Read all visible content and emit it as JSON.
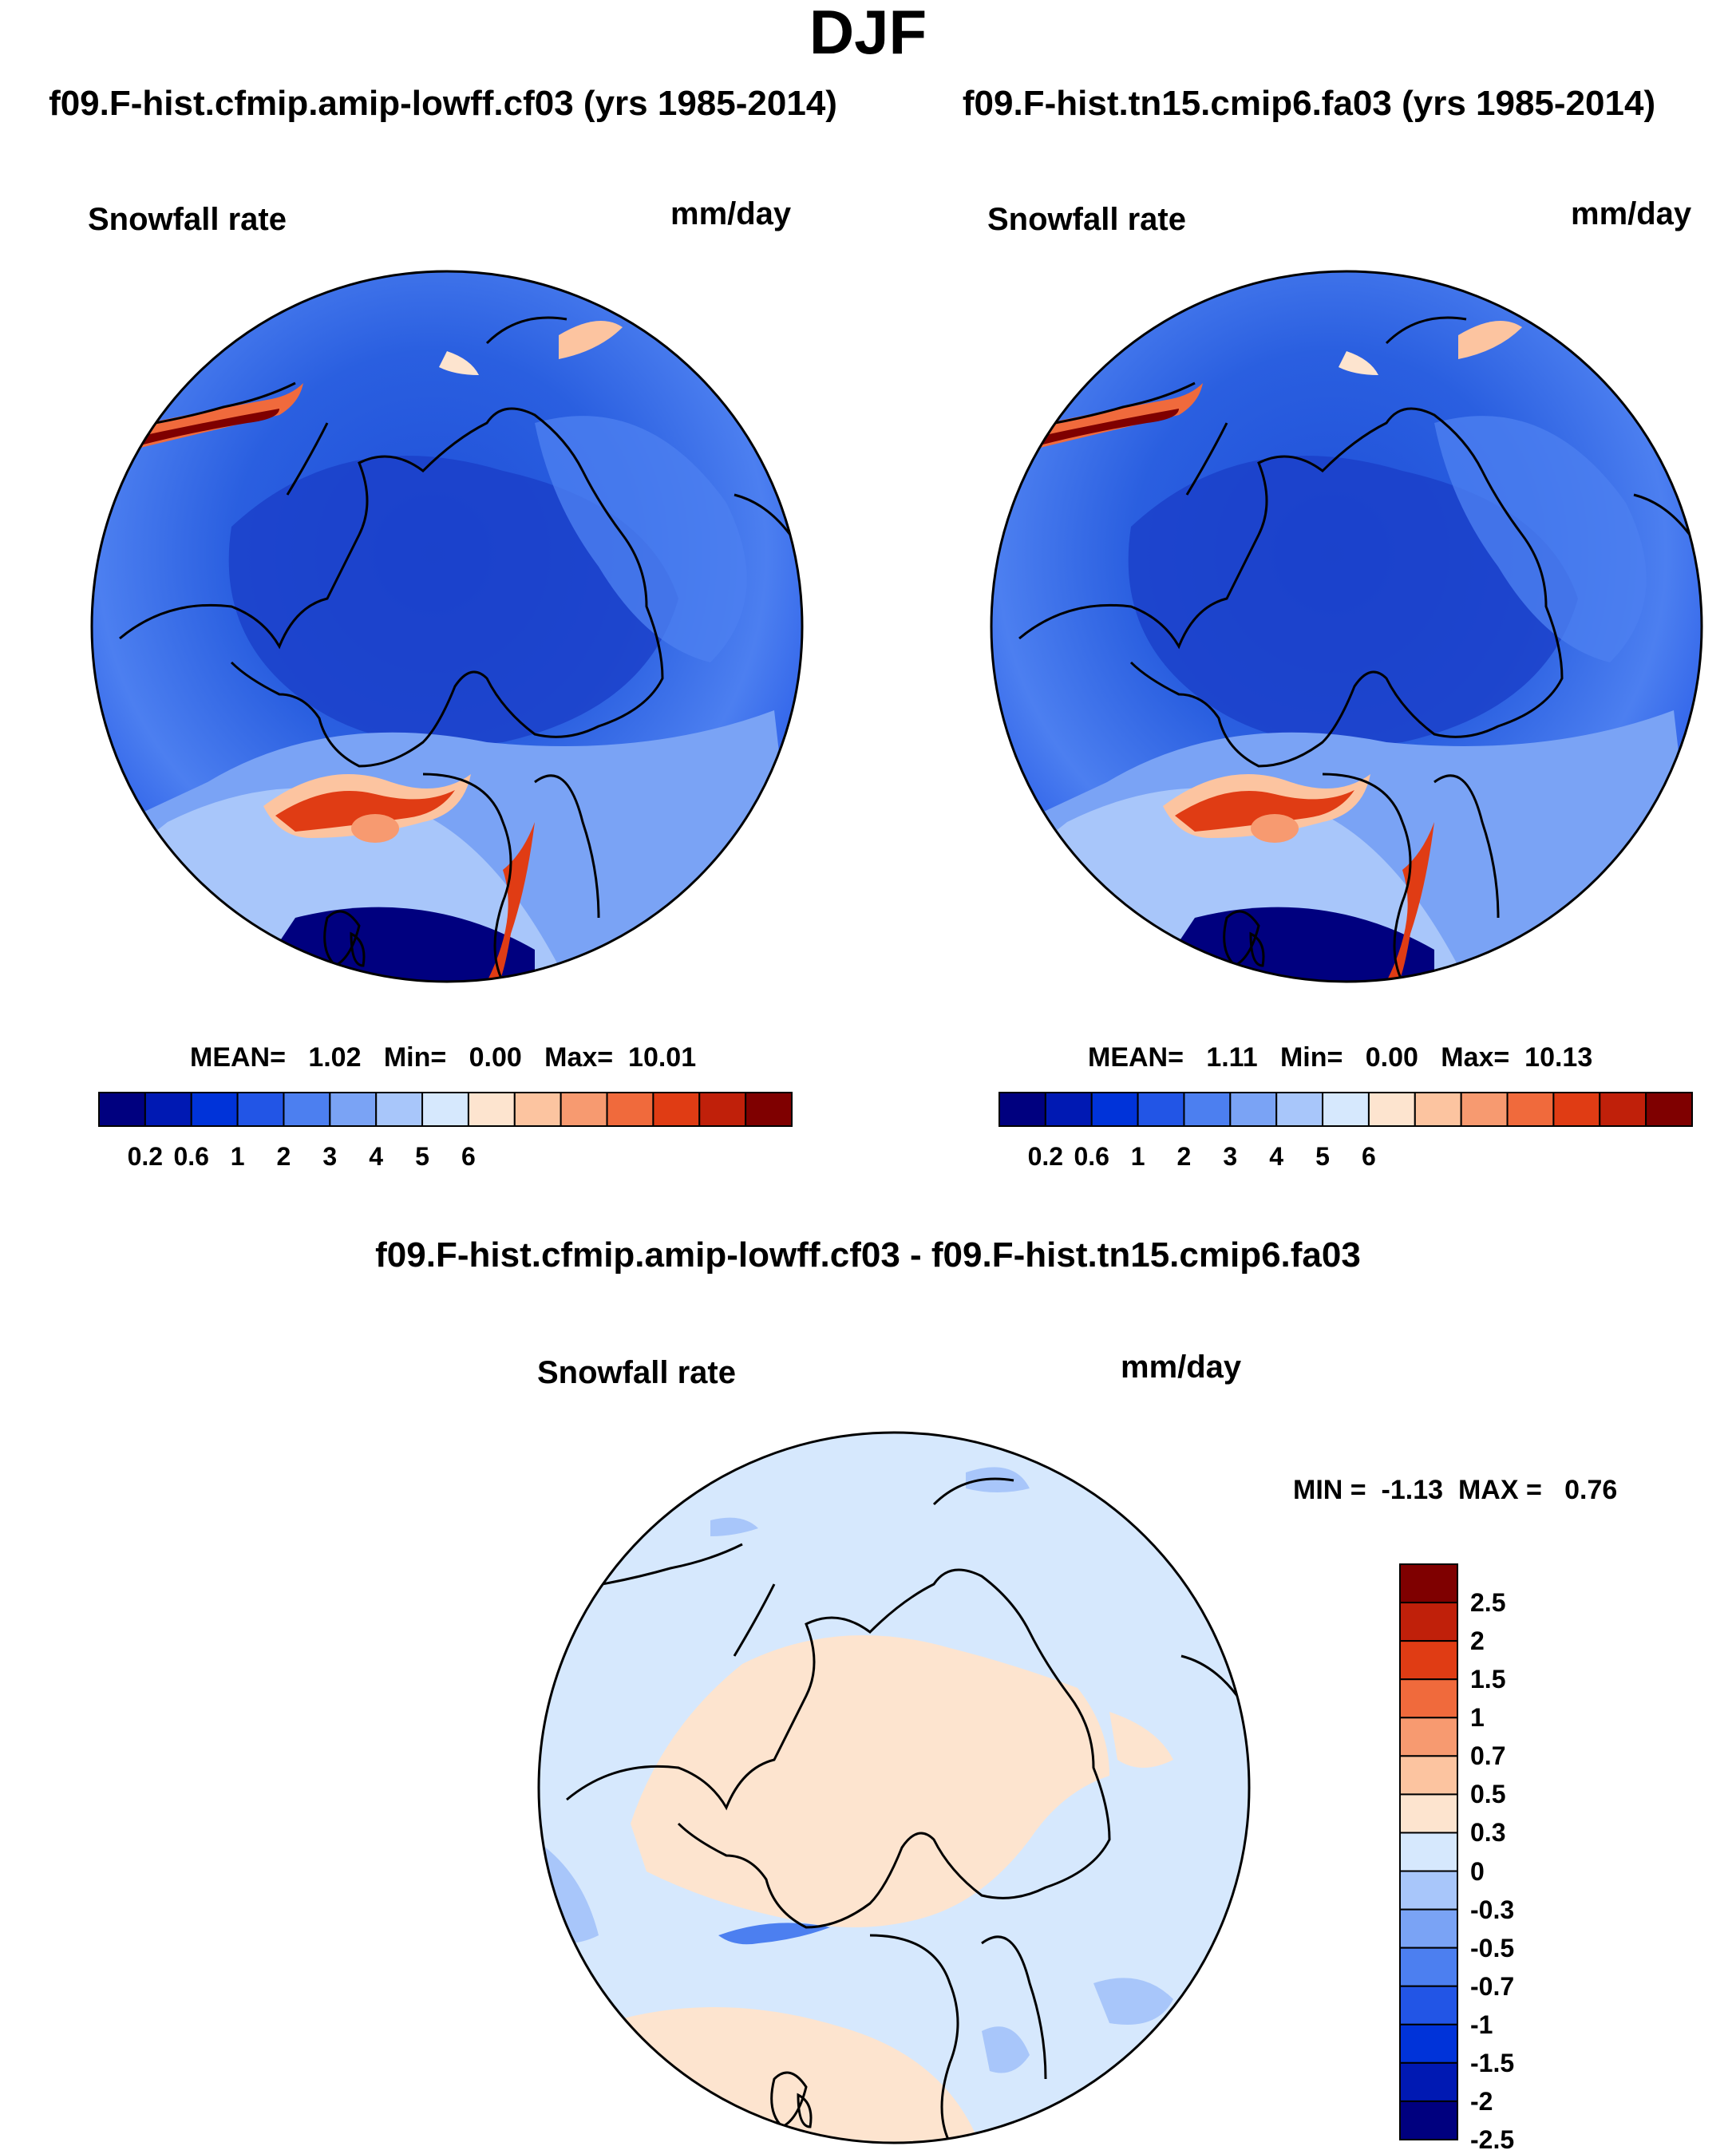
{
  "title": "DJF",
  "panels": [
    {
      "id": "left",
      "run_title": "f09.F-hist.cfmip.amip-lowff.cf03 (yrs 1985-2014)",
      "field": "Snowfall rate",
      "units": "mm/day",
      "stats": {
        "mean_label": "MEAN=",
        "mean": "1.02",
        "min_label": "Min=",
        "min": "0.00",
        "max_label": "Max=",
        "max": "10.01"
      }
    },
    {
      "id": "right",
      "run_title": "f09.F-hist.tn15.cmip6.fa03 (yrs 1985-2014)",
      "field": "Snowfall rate",
      "units": "mm/day",
      "stats": {
        "mean_label": "MEAN=",
        "mean": "1.11",
        "min_label": "Min=",
        "min": "0.00",
        "max_label": "Max=",
        "max": "10.13"
      }
    }
  ],
  "abs_colorbar": {
    "colors": [
      "#00007f",
      "#0019b3",
      "#0033d9",
      "#2255e6",
      "#4c7ff0",
      "#7aa3f5",
      "#a8c6fa",
      "#d6e8fd",
      "#fde4cf",
      "#fcc4a0",
      "#f79a70",
      "#f06a3c",
      "#e03c14",
      "#c0200a",
      "#7f0000"
    ],
    "ticks": [
      "0.2",
      "0.6",
      "1",
      "2",
      "3",
      "4",
      "5",
      "6"
    ]
  },
  "diff": {
    "title": "f09.F-hist.cfmip.amip-lowff.cf03 - f09.F-hist.tn15.cmip6.fa03",
    "field": "Snowfall rate",
    "units": "mm/day",
    "stats": {
      "min_label": "MIN =",
      "min": "-1.13",
      "max_label": "MAX =",
      "max": "0.76"
    }
  },
  "diff_colorbar": {
    "colors_top_to_bottom": [
      "#7f0000",
      "#c0200a",
      "#e03c14",
      "#f06a3c",
      "#f79a70",
      "#fcc4a0",
      "#fde4cf",
      "#d6e8fd",
      "#a8c6fa",
      "#7aa3f5",
      "#4c7ff0",
      "#2255e6",
      "#0033d9",
      "#0019b3",
      "#00007f"
    ],
    "ticks_top_to_bottom": [
      "2.5",
      "2",
      "1.5",
      "1",
      "0.7",
      "0.5",
      "0.3",
      "0",
      "-0.3",
      "-0.5",
      "-0.7",
      "-1",
      "-1.5",
      "-2",
      "-2.5"
    ]
  },
  "map_features": {
    "left": [
      "greenland-high-snowfall",
      "alaska-coast-high-snowfall",
      "norway-coast-high-snowfall",
      "arctic-ocean-low-snowfall"
    ],
    "right": [
      "greenland-high-snowfall",
      "alaska-coast-high-snowfall",
      "norway-coast-high-snowfall",
      "arctic-ocean-low-snowfall"
    ],
    "diff": [
      "arctic-positive-difference",
      "greenland-coast-negative-difference"
    ]
  }
}
